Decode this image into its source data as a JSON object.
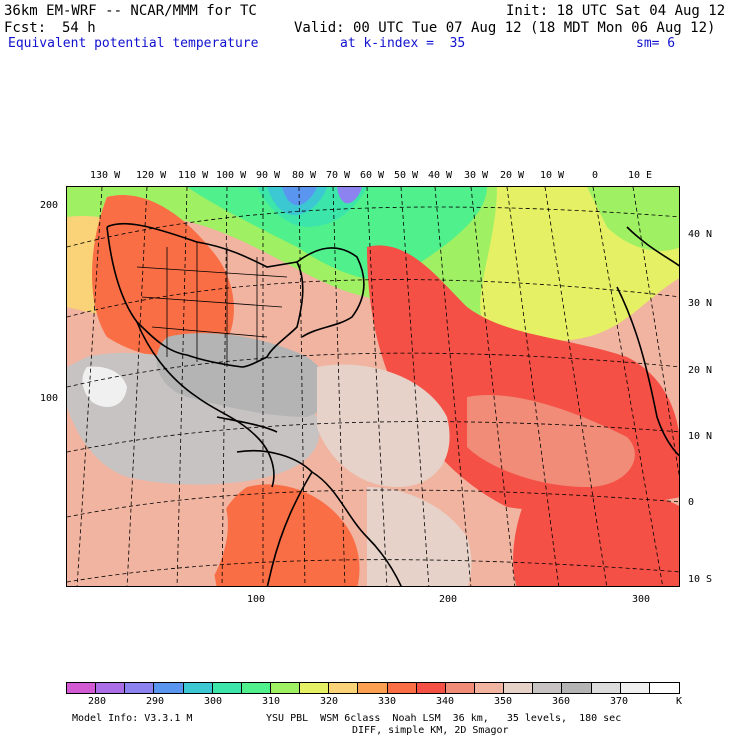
{
  "header": {
    "model": "36km EM-WRF -- NCAR/MMM for TC",
    "init": "Init: 18 UTC Sat 04 Aug 12",
    "fcst_label": "Fcst:",
    "fcst_value": "54 h",
    "valid": "Valid: 00 UTC Tue 07 Aug 12 (18 MDT Mon 06 Aug 12)",
    "field": "Equivalent potential temperature",
    "level": "at k-index =  35",
    "smooth": "sm= 6"
  },
  "map": {
    "top_longitudes": [
      "130 W",
      "120 W",
      "110 W",
      "100 W",
      "90 W",
      "80 W",
      "70 W",
      "60 W",
      "50 W",
      "40 W",
      "30 W",
      "20 W",
      "10 W",
      "0",
      "10 E"
    ],
    "right_latitudes": [
      "40 N",
      "30 N",
      "20 N",
      "10 N",
      "0",
      "10 S"
    ],
    "left_y_ticks": [
      "200",
      "100"
    ],
    "bottom_x_ticks": [
      "100",
      "200",
      "300"
    ]
  },
  "colorbar": {
    "labels": [
      "280",
      "290",
      "300",
      "310",
      "320",
      "330",
      "340",
      "350",
      "360",
      "370"
    ],
    "units": "K",
    "colors": [
      "#d25ad2",
      "#aa6ee6",
      "#8c82f0",
      "#5a96f0",
      "#3cc8d2",
      "#3ce6aa",
      "#50f08c",
      "#a0f064",
      "#e6f064",
      "#fad278",
      "#faa050",
      "#fa6e46",
      "#f55046",
      "#f08c78",
      "#f0b4a0",
      "#e6d2c8",
      "#c8c3c3",
      "#b4b4b4",
      "#dcdcdc",
      "#f0f0f0",
      "#ffffff"
    ]
  },
  "footer": {
    "line1_left": "Model Info: V3.3.1 M",
    "line1_right": "YSU PBL  WSM 6class  Noah LSM  36 km,   35 levels,  180 sec",
    "line2": "DIFF, simple KM, 2D Smagor"
  }
}
